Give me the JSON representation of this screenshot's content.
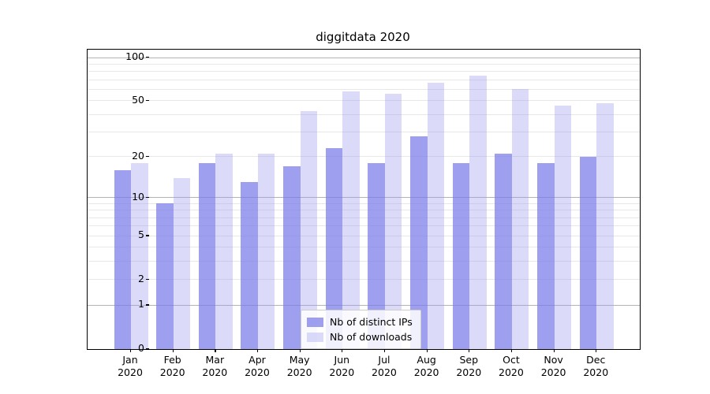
{
  "title": "diggitdata 2020",
  "chart_data": {
    "type": "bar",
    "title": "diggitdata 2020",
    "categories": [
      "Jan 2020",
      "Feb 2020",
      "Mar 2020",
      "Apr 2020",
      "May 2020",
      "Jun 2020",
      "Jul 2020",
      "Aug 2020",
      "Sep 2020",
      "Oct 2020",
      "Nov 2020",
      "Dec 2020"
    ],
    "month_labels": [
      "Jan",
      "Feb",
      "Mar",
      "Apr",
      "May",
      "Jun",
      "Jul",
      "Aug",
      "Sep",
      "Oct",
      "Nov",
      "Dec"
    ],
    "year_label": "2020",
    "series": [
      {
        "name": "Nb of distinct IPs",
        "color": "#a2a2f0",
        "values": [
          16,
          9,
          18,
          13,
          17,
          23,
          18,
          28,
          18,
          21,
          18,
          20
        ]
      },
      {
        "name": "Nb of downloads",
        "color": "#dcdcf9",
        "values": [
          18,
          14,
          21,
          21,
          42,
          58,
          56,
          67,
          75,
          60,
          46,
          48
        ]
      }
    ],
    "xlabel": "",
    "ylabel": "",
    "y_scale": "log10(1+v)",
    "y_ticks": [
      0,
      1,
      2,
      5,
      10,
      20,
      50,
      100
    ],
    "y_major_gridlines": [
      1,
      10,
      100
    ],
    "y_minor_gridlines": [
      2,
      3,
      4,
      5,
      6,
      7,
      8,
      9,
      20,
      30,
      40,
      50,
      60,
      70,
      80,
      90
    ],
    "ylim": [
      0,
      113
    ],
    "grid": "on",
    "legend_position": "lower center"
  },
  "colors": {
    "bar_distinct_ips": "#a2a2f0",
    "bar_downloads": "#dcdcf9",
    "grid_major": "#b3b3b3",
    "grid_minor": "#e7e7e7",
    "spine": "#000000"
  }
}
